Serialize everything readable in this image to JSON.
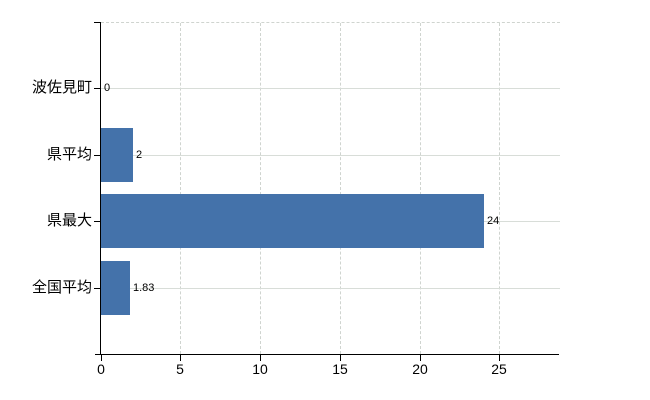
{
  "chart_data": {
    "type": "bar",
    "orientation": "horizontal",
    "title": "",
    "categories": [
      "波佐見町",
      "県平均",
      "県最大",
      "全国平均"
    ],
    "values": [
      0,
      2,
      24,
      1.83
    ],
    "value_labels": [
      "0",
      "2",
      "24",
      "1.83"
    ],
    "x_tick_values": [
      0,
      5,
      10,
      15,
      20,
      25
    ],
    "x_tick_labels": [
      "0",
      "5",
      "10",
      "15",
      "20",
      "25"
    ],
    "xlim": [
      0,
      28.8
    ],
    "grid": "on",
    "legend": "none",
    "style": {
      "bar_color": "#4472aa",
      "h_gridline_color": "#d8ddd8",
      "v_gridline_color": "#cfd4cf",
      "border_dash_color": "#cfd4cf",
      "axis_color": "#000000",
      "text_color": "#000000",
      "background_color": "#ffffff"
    }
  }
}
